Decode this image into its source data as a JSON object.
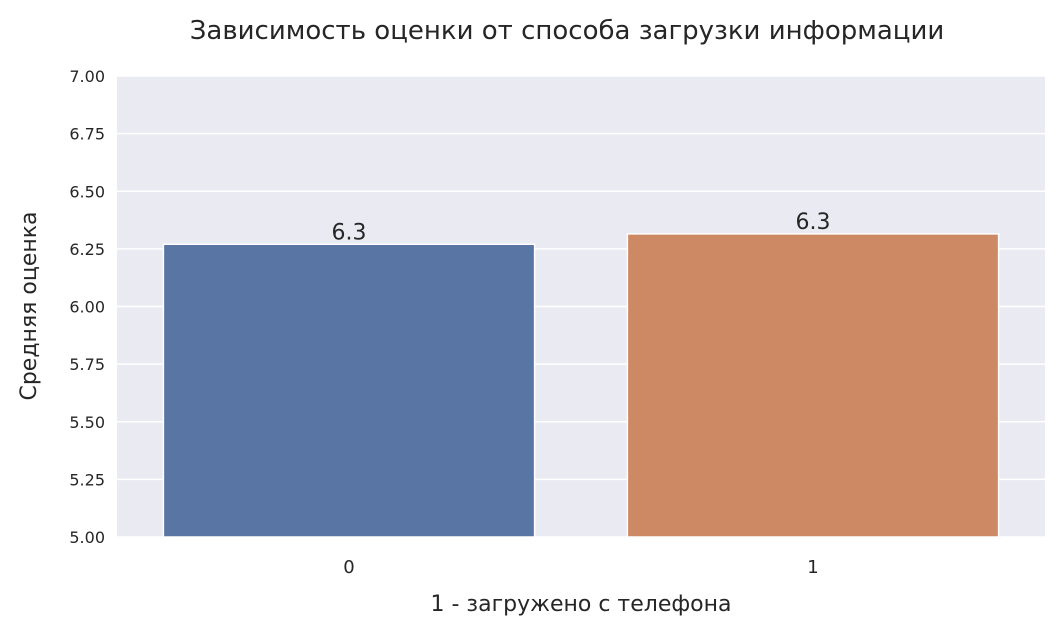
{
  "chart_data": {
    "type": "bar",
    "title": "Зависимость оценки от способа загрузки информации",
    "xlabel": "1 - загружено с телефона",
    "ylabel": "Средняя оценка",
    "categories": [
      "0",
      "1"
    ],
    "values": [
      6.27,
      6.315
    ],
    "data_labels": [
      "6.3",
      "6.3"
    ],
    "colors": [
      "#5975a4",
      "#cc8963"
    ],
    "ylim": [
      5.0,
      7.0
    ],
    "yticks": [
      "5.00",
      "5.25",
      "5.50",
      "5.75",
      "6.00",
      "6.25",
      "6.50",
      "6.75",
      "7.00"
    ],
    "grid": true,
    "legend": "none",
    "background": "#eaeaf2"
  }
}
